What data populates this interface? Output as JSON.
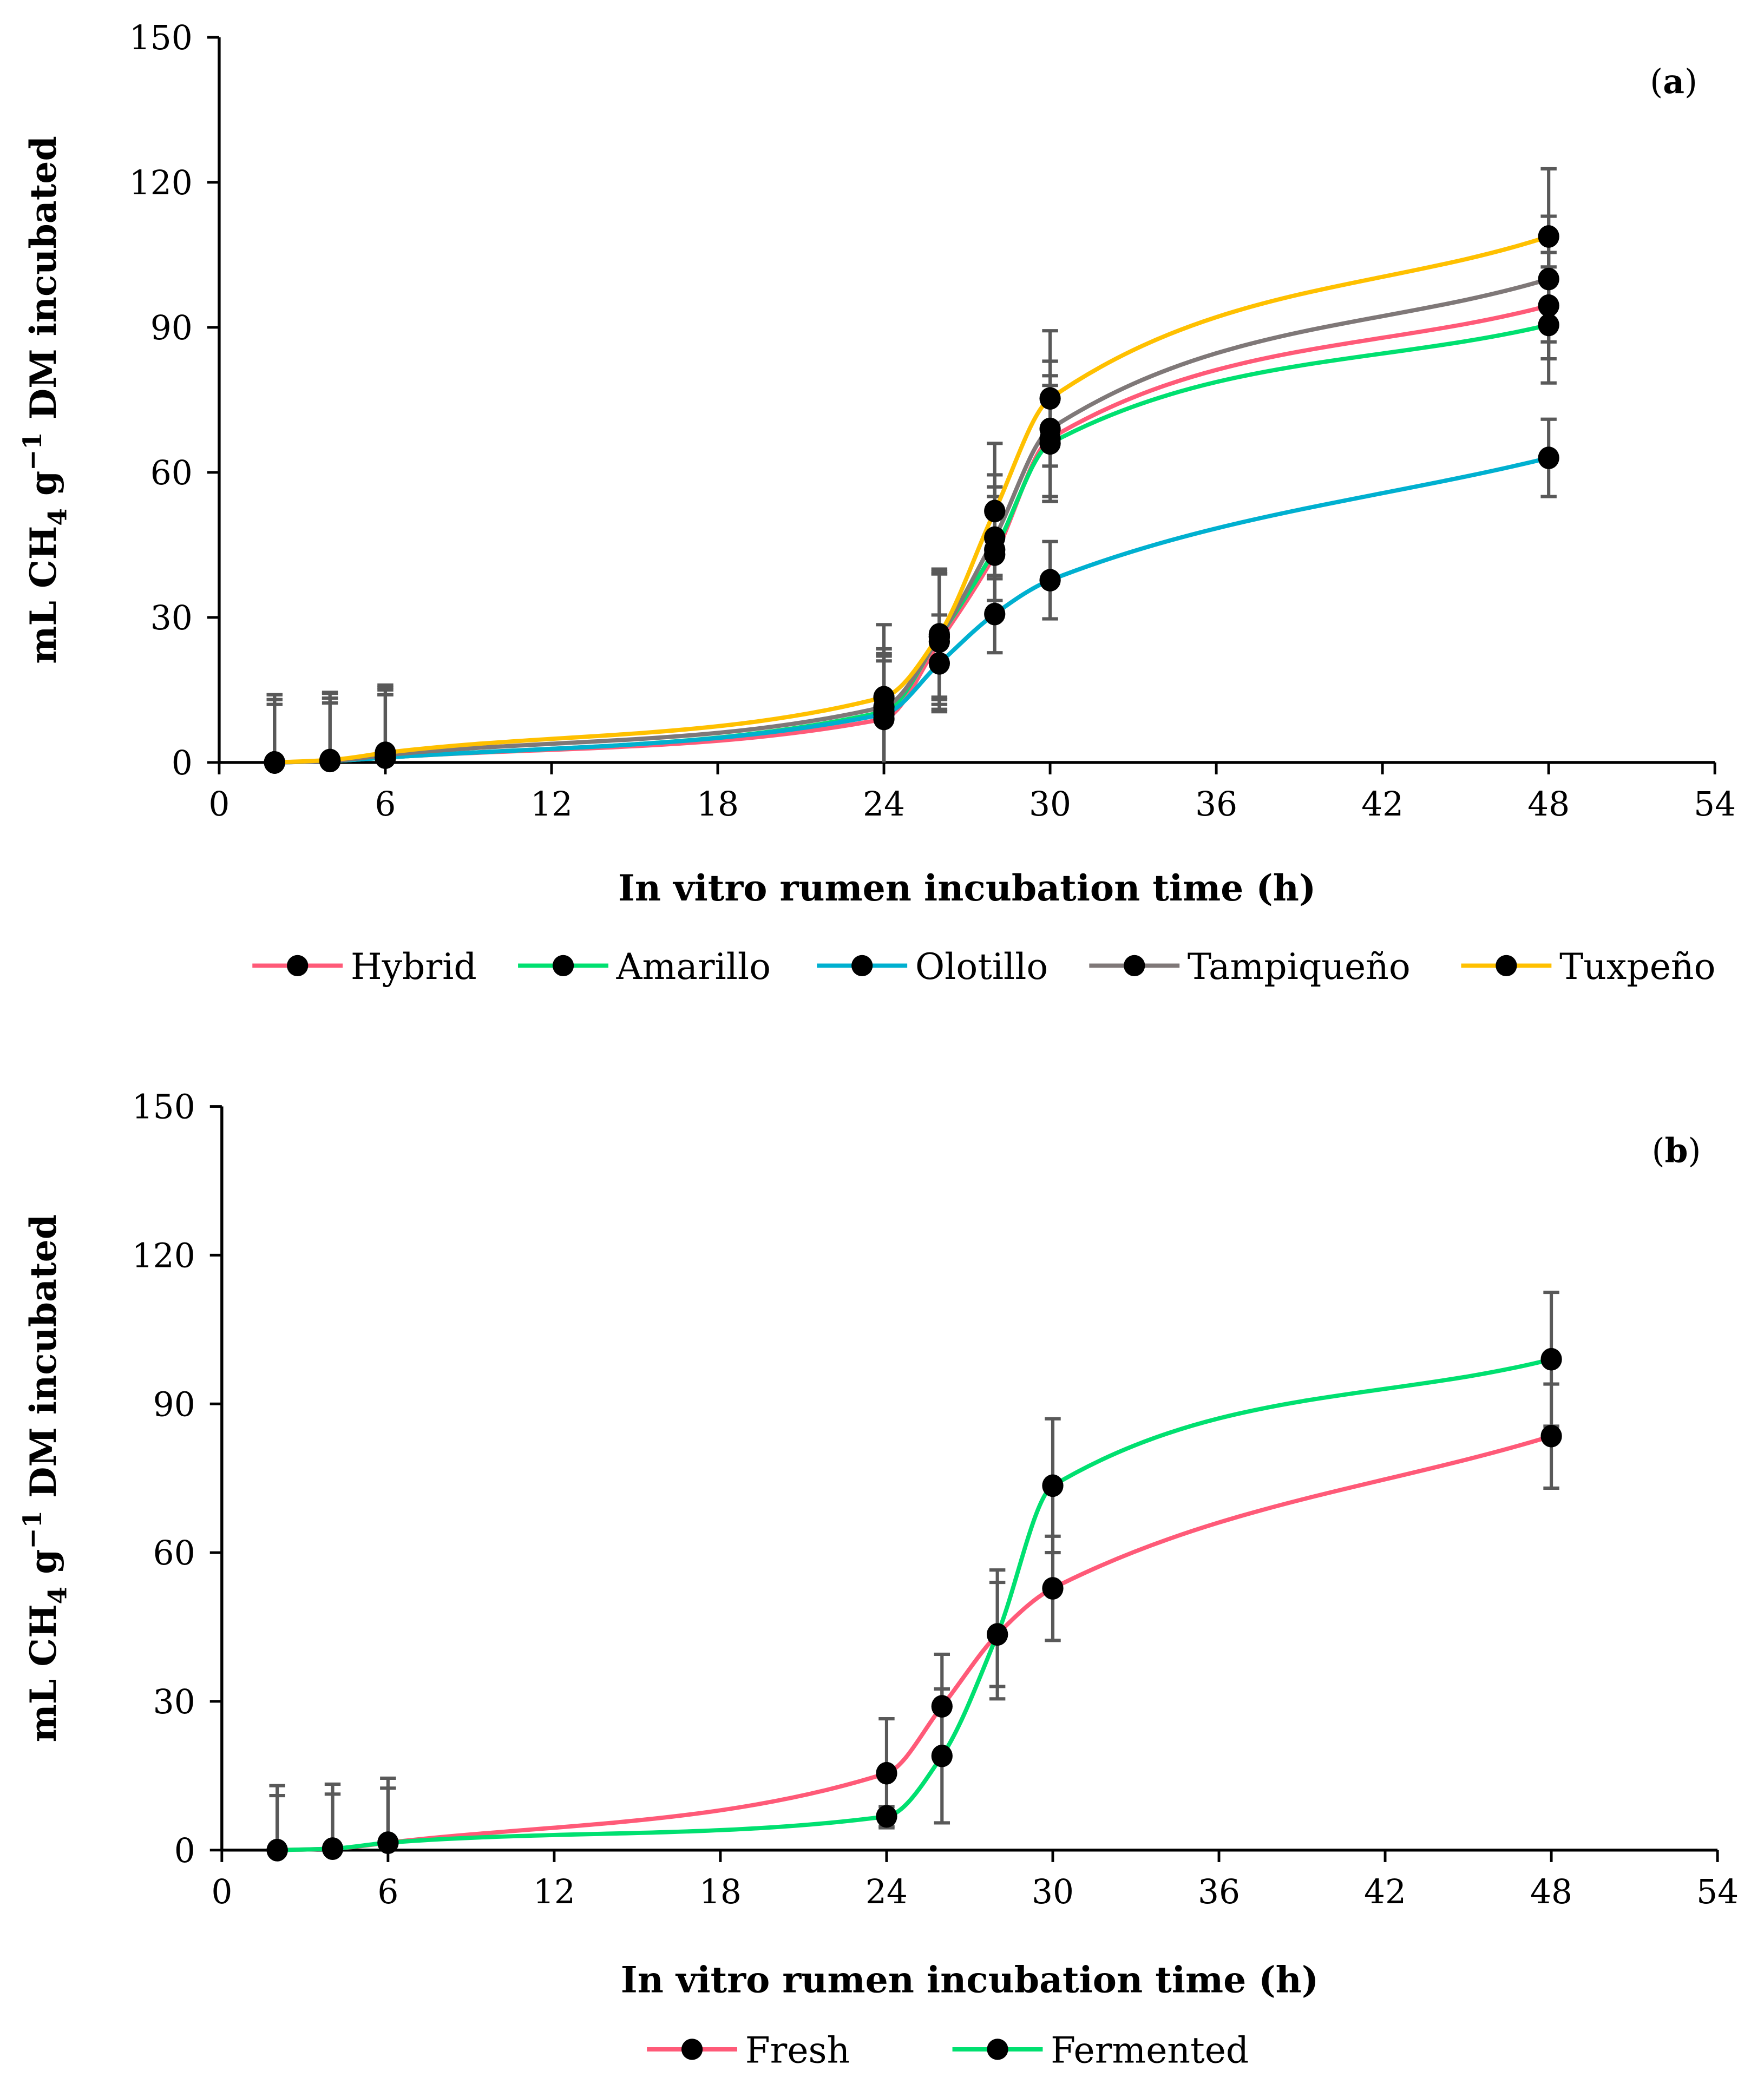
{
  "chart_data": [
    {
      "type": "line",
      "panel_label_pre": "(",
      "panel_label_letter": "a",
      "panel_label_post": ")",
      "xlabel": "In vitro rumen incubation time (h)",
      "ylabel": {
        "a": "mL CH",
        "sub": "4",
        "b": " g",
        "sup": "−1",
        "c": " DM incubated"
      },
      "xlim": [
        0,
        54
      ],
      "ylim": [
        0,
        150
      ],
      "xticks": [
        "0",
        "6",
        "12",
        "18",
        "24",
        "30",
        "36",
        "42",
        "48",
        "54"
      ],
      "yticks": [
        "0",
        "30",
        "60",
        "90",
        "120",
        "150"
      ],
      "legend_position": "bottom",
      "x": [
        2,
        4,
        6,
        24,
        26,
        28,
        30,
        48
      ],
      "series": [
        {
          "name": "Hybrid",
          "color": "#FF5A78",
          "values": [
            0,
            0.3,
            1,
            9,
            25,
            43,
            67,
            94.5
          ],
          "err": [
            13,
            13,
            14,
            13,
            14,
            12,
            13,
            11
          ]
        },
        {
          "name": "Amarillo",
          "color": "#00E070",
          "values": [
            0,
            0.3,
            1,
            10.5,
            26,
            44,
            66,
            90.5
          ],
          "err": [
            13,
            13,
            13,
            12,
            13,
            13,
            12,
            12
          ]
        },
        {
          "name": "Olotillo",
          "color": "#00B0D0",
          "values": [
            0,
            0.3,
            1,
            10,
            20.5,
            30.7,
            37.7,
            63
          ],
          "err": [
            12,
            12,
            13,
            11,
            10,
            8,
            8,
            8
          ]
        },
        {
          "name": "Tampiqueño",
          "color": "#7F7878",
          "values": [
            0,
            0.3,
            1.5,
            11.5,
            26,
            46.5,
            69,
            100
          ],
          "err": [
            14,
            14,
            14,
            12,
            14,
            13,
            14,
            13
          ]
        },
        {
          "name": "Tuxpeño",
          "color": "#FFC000",
          "values": [
            0,
            0.5,
            2,
            13.5,
            26.5,
            52,
            75.3,
            108.8
          ],
          "err": [
            14,
            14,
            14,
            15,
            13,
            14,
            14,
            14
          ]
        }
      ]
    },
    {
      "type": "line",
      "panel_label_pre": "(",
      "panel_label_letter": "b",
      "panel_label_post": ")",
      "xlabel": "In vitro rumen incubation time (h)",
      "ylabel": {
        "a": "mL CH",
        "sub": "4",
        "b": " g",
        "sup": "−1",
        "c": " DM incubated"
      },
      "xlim": [
        0,
        54
      ],
      "ylim": [
        0,
        150
      ],
      "xticks": [
        "0",
        "6",
        "12",
        "18",
        "24",
        "30",
        "36",
        "42",
        "48",
        "54"
      ],
      "yticks": [
        "0",
        "30",
        "60",
        "90",
        "120",
        "150"
      ],
      "legend_position": "bottom",
      "x": [
        2,
        4,
        6,
        24,
        26,
        28,
        30,
        48
      ],
      "series": [
        {
          "name": "Fresh",
          "color": "#FF5A78",
          "values": [
            0,
            0.3,
            1.5,
            15.5,
            29,
            43.5,
            52.8,
            83.5
          ],
          "err": [
            13,
            13,
            13,
            11,
            10.5,
            13,
            10.5,
            10.5
          ]
        },
        {
          "name": "Fermented",
          "color": "#00E070",
          "values": [
            0,
            0.3,
            1.5,
            6.8,
            19,
            43.5,
            73.5,
            99
          ],
          "err": [
            11,
            11,
            11,
            2,
            13.5,
            10.5,
            13.5,
            13.5
          ]
        }
      ]
    }
  ]
}
